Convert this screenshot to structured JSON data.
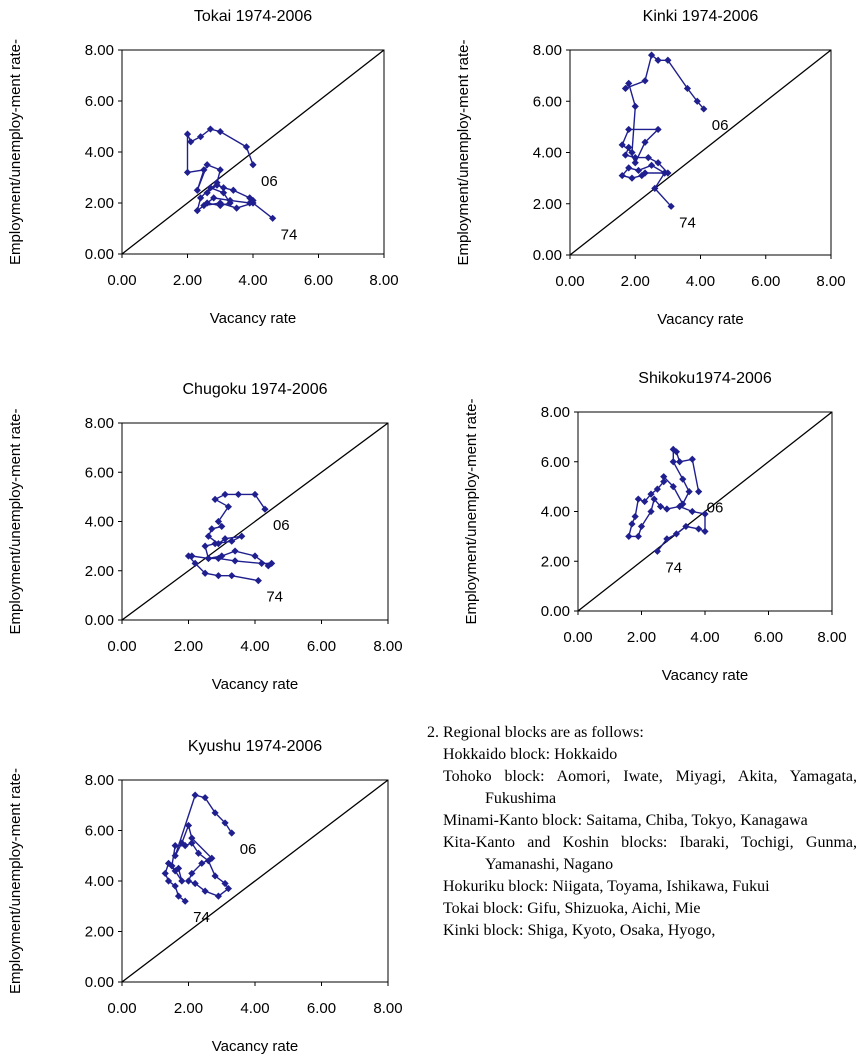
{
  "chart_data": [
    {
      "type": "line",
      "title": "Tokai 1974-2006",
      "xlabel": "Vacancy rate",
      "ylabel": "Employment/unemploy-ment rate",
      "xlim": [
        0,
        8
      ],
      "ylim": [
        0,
        8
      ],
      "ticks": [
        "0.00",
        "2.00",
        "4.00",
        "6.00",
        "8.00"
      ],
      "diagonal": true,
      "marker_color": "#1f1f8f",
      "series": [
        {
          "x": [
            4.6,
            4.0,
            3.5,
            3.0,
            2.5,
            2.3,
            2.4,
            2.7,
            3.1,
            3.3,
            3.0,
            2.6,
            2.8,
            3.3,
            3.9,
            4.0,
            3.9,
            3.4,
            3.1,
            2.9,
            2.6,
            2.9,
            3.0,
            2.6,
            2.3,
            2.5,
            2.0,
            2.0,
            2.1,
            2.4,
            2.7,
            3.0,
            3.8,
            4.0
          ],
          "y": [
            1.4,
            2.0,
            1.8,
            2.0,
            1.9,
            1.7,
            2.2,
            2.6,
            2.4,
            2.0,
            1.9,
            2.0,
            2.2,
            2.1,
            2.0,
            2.1,
            2.2,
            2.5,
            2.6,
            2.7,
            2.4,
            2.8,
            3.3,
            3.5,
            2.5,
            3.3,
            3.2,
            4.7,
            4.4,
            4.6,
            4.9,
            4.8,
            4.2,
            3.5
          ]
        }
      ],
      "annotations": [
        {
          "text": "74",
          "x": 4.6,
          "y": 1.4
        },
        {
          "text": "06",
          "x": 4.0,
          "y": 3.5
        }
      ]
    },
    {
      "type": "line",
      "title": "Kinki 1974-2006",
      "xlabel": "Vacancy rate",
      "ylabel": "Employment/unemploy-ment rate",
      "xlim": [
        0,
        8
      ],
      "ylim": [
        0,
        8
      ],
      "ticks": [
        "0.00",
        "2.00",
        "4.00",
        "6.00",
        "8.00"
      ],
      "diagonal": true,
      "marker_color": "#1f1f8f",
      "series": [
        {
          "x": [
            3.1,
            2.6,
            2.9,
            2.3,
            2.2,
            1.9,
            1.6,
            1.8,
            2.1,
            2.5,
            2.9,
            3.0,
            2.7,
            2.4,
            2.0,
            1.7,
            1.8,
            2.0,
            2.3,
            2.7,
            1.8,
            1.6,
            1.9,
            2.0,
            1.8,
            1.7,
            2.3,
            2.5,
            2.7,
            3.0,
            3.6,
            3.9,
            4.1
          ],
          "y": [
            1.9,
            2.6,
            3.2,
            3.2,
            3.1,
            3.0,
            3.1,
            3.4,
            3.3,
            3.5,
            3.2,
            3.2,
            3.6,
            3.8,
            3.8,
            3.9,
            4.2,
            3.6,
            4.4,
            4.9,
            4.9,
            4.3,
            4.0,
            5.8,
            6.7,
            6.5,
            6.8,
            7.8,
            7.6,
            7.6,
            6.5,
            6.0,
            5.7
          ]
        }
      ],
      "annotations": [
        {
          "text": "74",
          "x": 3.1,
          "y": 1.9
        },
        {
          "text": "06",
          "x": 4.1,
          "y": 5.7
        }
      ]
    },
    {
      "type": "line",
      "title": "Chugoku 1974-2006",
      "xlabel": "Vacancy rate",
      "ylabel": "Employment/unemploy-ment rate",
      "xlim": [
        0,
        8
      ],
      "ylim": [
        0,
        8
      ],
      "ticks": [
        "0.00",
        "2.00",
        "4.00",
        "6.00",
        "8.00"
      ],
      "diagonal": true,
      "marker_color": "#1f1f8f",
      "series": [
        {
          "x": [
            4.1,
            3.3,
            2.9,
            2.5,
            2.2,
            2.0,
            2.1,
            2.6,
            3.0,
            3.4,
            4.0,
            4.4,
            4.5,
            4.2,
            3.4,
            2.9,
            2.6,
            2.5,
            2.8,
            3.3,
            3.6,
            3.1,
            2.9,
            2.6,
            2.7,
            3.0,
            2.9,
            3.2,
            2.8,
            3.1,
            3.5,
            4.0,
            4.3
          ],
          "y": [
            1.6,
            1.8,
            1.8,
            1.9,
            2.3,
            2.6,
            2.6,
            2.5,
            2.6,
            2.8,
            2.6,
            2.2,
            2.3,
            2.3,
            2.4,
            2.5,
            2.5,
            3.0,
            3.1,
            3.2,
            3.4,
            3.3,
            3.1,
            3.4,
            3.7,
            3.8,
            4.0,
            4.6,
            4.9,
            5.1,
            5.1,
            5.1,
            4.5
          ]
        }
      ],
      "annotations": [
        {
          "text": "74",
          "x": 4.1,
          "y": 1.6
        },
        {
          "text": "06",
          "x": 4.3,
          "y": 4.5
        }
      ]
    },
    {
      "type": "line",
      "title": "Shikoku1974-2006",
      "xlabel": "Vacancy rate",
      "ylabel": "Employment/unemploy-ment rate",
      "xlim": [
        0,
        8
      ],
      "ylim": [
        0,
        8
      ],
      "ticks": [
        "0.00",
        "2.00",
        "4.00",
        "6.00",
        "8.00"
      ],
      "diagonal": true,
      "marker_color": "#1f1f8f",
      "series": [
        {
          "x": [
            2.5,
            2.8,
            3.1,
            3.4,
            3.8,
            4.0,
            4.0,
            3.6,
            3.2,
            2.8,
            2.6,
            2.4,
            2.3,
            2.0,
            1.9,
            1.6,
            1.7,
            1.8,
            1.9,
            2.1,
            2.3,
            2.5,
            2.7,
            2.7,
            3.0,
            3.3,
            3.5,
            3.3,
            3.0,
            3.0,
            3.1,
            3.2,
            3.6,
            3.8
          ],
          "y": [
            2.4,
            2.9,
            3.1,
            3.4,
            3.3,
            3.2,
            3.9,
            4.0,
            4.2,
            4.1,
            4.2,
            4.5,
            4.0,
            3.4,
            3.0,
            3.0,
            3.5,
            3.8,
            4.5,
            4.4,
            4.7,
            4.9,
            5.2,
            5.4,
            5.0,
            4.3,
            4.8,
            5.3,
            6.0,
            6.5,
            6.4,
            6.0,
            6.1,
            4.8
          ]
        }
      ],
      "annotations": [
        {
          "text": "74",
          "x": 2.5,
          "y": 2.4
        },
        {
          "text": "06",
          "x": 3.8,
          "y": 4.8
        }
      ]
    },
    {
      "type": "line",
      "title": "Kyushu 1974-2006",
      "xlabel": "Vacancy rate",
      "ylabel": "Employment/unemploy-ment rate",
      "xlim": [
        0,
        8
      ],
      "ylim": [
        0,
        8
      ],
      "ticks": [
        "0.00",
        "2.00",
        "4.00",
        "6.00",
        "8.00"
      ],
      "diagonal": true,
      "marker_color": "#1f1f8f",
      "series": [
        {
          "x": [
            1.9,
            1.7,
            1.6,
            1.4,
            1.3,
            1.4,
            1.6,
            1.7,
            1.8,
            1.5,
            1.6,
            1.9,
            2.1,
            2.3,
            2.6,
            2.8,
            3.1,
            3.2,
            2.9,
            2.5,
            2.2,
            2.0,
            2.1,
            2.4,
            2.7,
            2.1,
            2.0,
            1.8,
            1.6,
            2.2,
            2.5,
            2.8,
            3.1,
            3.3
          ],
          "y": [
            3.2,
            3.4,
            3.8,
            4.0,
            4.3,
            4.7,
            4.4,
            4.5,
            4.0,
            4.6,
            5.4,
            5.4,
            5.5,
            5.1,
            4.8,
            4.2,
            3.9,
            3.7,
            3.4,
            3.6,
            3.9,
            4.0,
            4.3,
            4.7,
            4.9,
            5.7,
            6.2,
            5.5,
            5.0,
            7.4,
            7.3,
            6.7,
            6.3,
            5.9
          ]
        }
      ],
      "annotations": [
        {
          "text": "74",
          "x": 1.9,
          "y": 3.2
        },
        {
          "text": "06",
          "x": 3.3,
          "y": 5.9
        }
      ]
    }
  ],
  "notes": {
    "title": "2. Regional blocks are as follows:",
    "blocks": [
      "Hokkaido block: Hokkaido",
      "Tohoko block: Aomori, Iwate, Miyagi, Akita, Yamagata, Fukushima",
      "Minami-Kanto block: Saitama, Chiba, Tokyo, Kanagawa",
      "Kita-Kanto and Koshin blocks: Ibaraki, Tochigi, Gunma, Yamanashi, Nagano",
      "Hokuriku block: Niigata, Toyama, Ishikawa, Fukui",
      "Tokai block: Gifu, Shizuoka, Aichi, Mie",
      "Kinki block: Shiga, Kyoto, Osaka, Hyogo,"
    ]
  }
}
